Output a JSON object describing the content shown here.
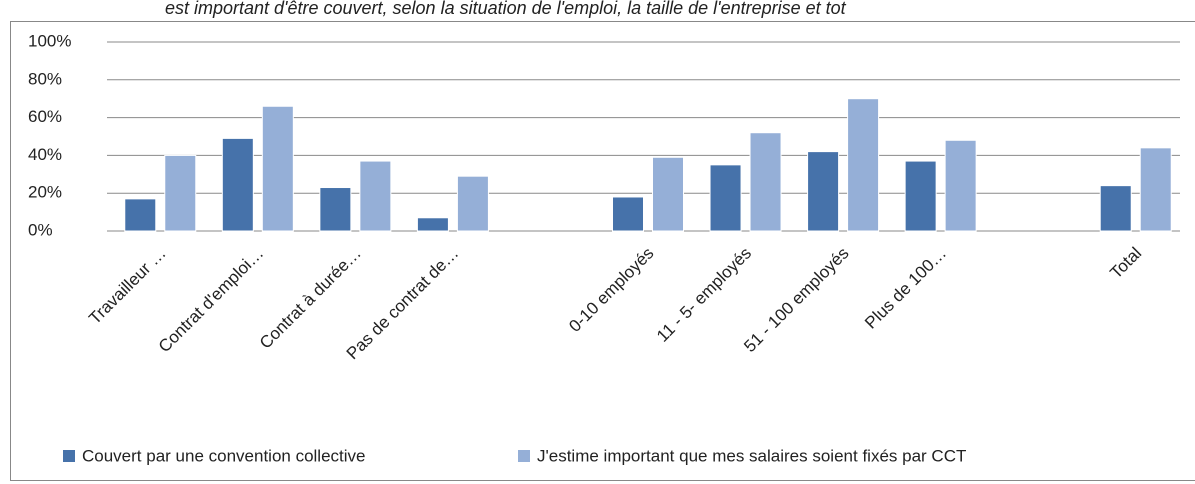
{
  "chart_data": {
    "type": "bar",
    "title": "est important d'être couvert, selon la situation de l'emploi, la taille de l'entreprise et tot",
    "categories": [
      "Travailleur …",
      "Contrat d'emploi…",
      "Contrat à durée…",
      "Pas de contrat de…",
      null,
      "0-10 employés",
      "11 - 5- employés",
      "51 - 100 employés",
      "Plus de 100…",
      null,
      "Total"
    ],
    "series": [
      {
        "name": "Couvert par une convention collective",
        "color": "#4672aa",
        "values": [
          17,
          49,
          23,
          7,
          null,
          18,
          35,
          42,
          37,
          null,
          24
        ]
      },
      {
        "name": "J'estime important que mes salaires soient fixés par CCT",
        "color": "#95afd7",
        "values": [
          40,
          66,
          37,
          29,
          null,
          39,
          52,
          70,
          48,
          null,
          44
        ]
      }
    ],
    "ylim": [
      0,
      100
    ],
    "yticks": [
      {
        "value": 0,
        "label": "0%"
      },
      {
        "value": 20,
        "label": "20%"
      },
      {
        "value": 40,
        "label": "40%"
      },
      {
        "value": 60,
        "label": "60%"
      },
      {
        "value": 80,
        "label": "80%"
      },
      {
        "value": 100,
        "label": "100%"
      }
    ],
    "grid": true,
    "legend": "bottom"
  }
}
